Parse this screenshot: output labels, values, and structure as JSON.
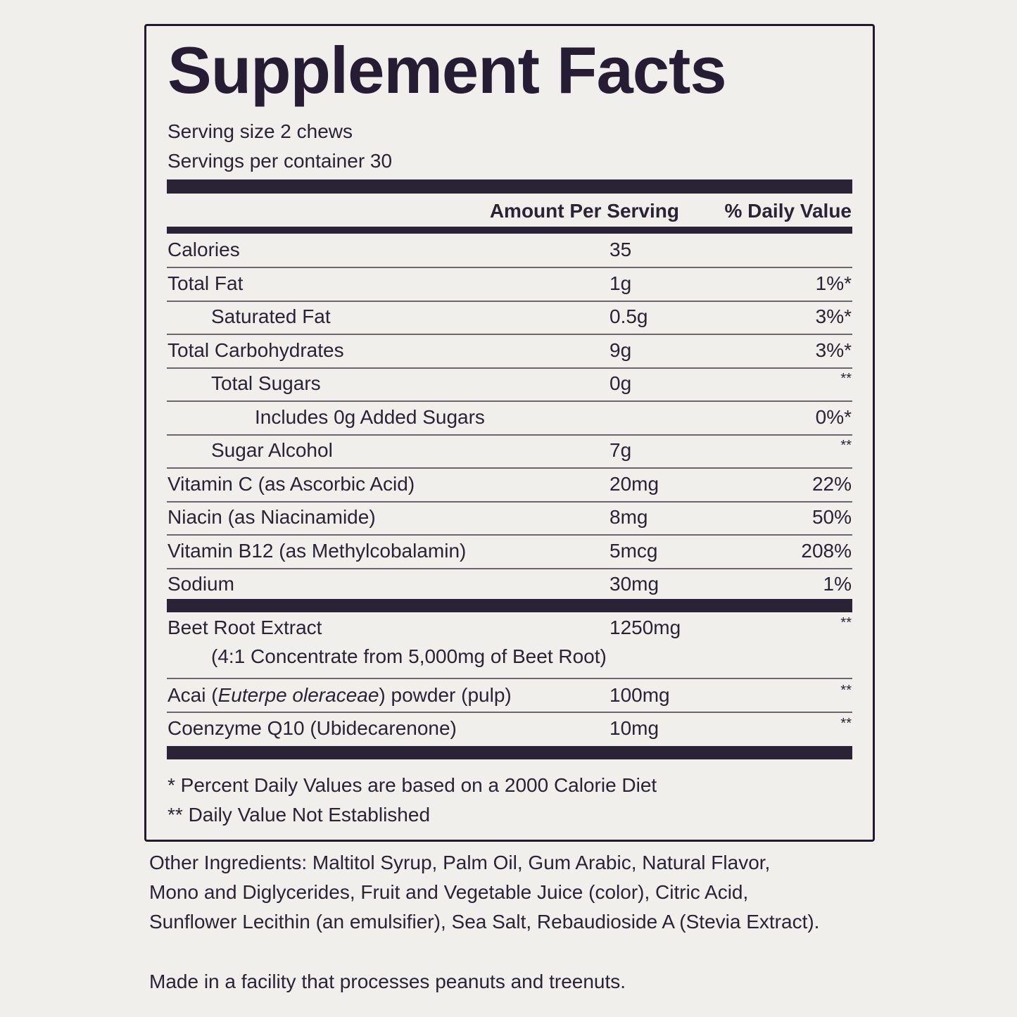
{
  "label": {
    "title": "Supplement Facts",
    "serving_size": "Serving size 2 chews",
    "servings_per_container": "Servings per container 30",
    "header": {
      "amount": "Amount Per Serving",
      "daily_value": "% Daily Value"
    },
    "rows": [
      {
        "name": [
          {
            "text": "Calories"
          }
        ],
        "amount": "35",
        "indent": 0
      },
      {
        "name": [
          {
            "text": "Total Fat"
          }
        ],
        "amount": "1g",
        "daily_value": "1%*",
        "indent": 0
      },
      {
        "name": [
          {
            "text": "Saturated Fat"
          }
        ],
        "amount": "0.5g",
        "daily_value": "3%*",
        "indent": 1
      },
      {
        "name": [
          {
            "text": "Total Carbohydrates"
          }
        ],
        "amount": "9g",
        "daily_value": "3%*",
        "indent": 0
      },
      {
        "name": [
          {
            "text": "Total Sugars"
          }
        ],
        "amount": "0g",
        "daily_value": "**",
        "indent": 1
      },
      {
        "name": [
          {
            "text": "Includes 0g Added Sugars"
          }
        ],
        "daily_value": "0%*",
        "indent": 2
      },
      {
        "name": [
          {
            "text": "Sugar Alcohol"
          }
        ],
        "amount": "7g",
        "daily_value": "**",
        "indent": 1
      },
      {
        "name": [
          {
            "text": "Vitamin C (as Ascorbic Acid)"
          }
        ],
        "amount": "20mg",
        "daily_value": "22%",
        "indent": 0
      },
      {
        "name": [
          {
            "text": "Niacin (as Niacinamide)"
          }
        ],
        "amount": "8mg",
        "daily_value": "50%",
        "indent": 0
      },
      {
        "name": [
          {
            "text": "Vitamin B12 (as Methylcobalamin)"
          }
        ],
        "amount": "5mcg",
        "daily_value": "208%",
        "indent": 0
      },
      {
        "name": [
          {
            "text": "Sodium"
          }
        ],
        "amount": "30mg",
        "daily_value": "1%",
        "indent": 0
      }
    ],
    "other_rows": [
      {
        "name": [
          {
            "text": "Beet Root Extract"
          }
        ],
        "amount": "1250mg",
        "daily_value": "**",
        "note": "(4:1 Concentrate from 5,000mg of Beet Root)"
      },
      {
        "name": [
          {
            "text": "Acai ("
          },
          {
            "text": "Euterpe oleraceae",
            "italic": true
          },
          {
            "text": ") powder (pulp)"
          }
        ],
        "amount": "100mg",
        "daily_value": "**"
      },
      {
        "name": [
          {
            "text": "Coenzyme Q10 (Ubidecarenone)"
          }
        ],
        "amount": "10mg",
        "daily_value": "**"
      }
    ],
    "footnotes": [
      "* Percent Daily Values are based on a 2000 Calorie Diet",
      "** Daily Value Not Established"
    ]
  },
  "other_ingredients": [
    "Other Ingredients: Maltitol Syrup, Palm Oil, Gum Arabic, Natural Flavor,",
    "Mono and Diglycerides, Fruit and Vegetable Juice (color), Citric Acid,",
    "Sunflower Lecithin (an emulsifier), Sea Salt, Rebaudioside A (Stevia Extract)."
  ],
  "allergen_note": "Made in a facility that processes peanuts and treenuts."
}
